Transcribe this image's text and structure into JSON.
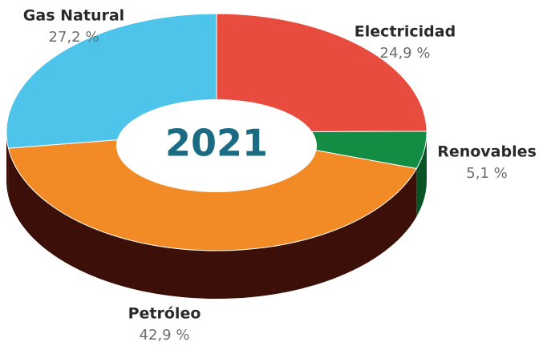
{
  "chart_data": {
    "type": "pie",
    "donut": true,
    "title": "2021",
    "categories": [
      "Electricidad",
      "Renovables",
      "Petróleo",
      "Gas Natural"
    ],
    "values": [
      24.9,
      5.1,
      42.9,
      27.2
    ],
    "value_labels": [
      "24,9 %",
      "5,1 %",
      "42,9 %",
      "27,2 %"
    ],
    "colors": [
      "#e84c3f",
      "#138c44",
      "#f28a26",
      "#4fc4eb"
    ],
    "side_colors": [
      "#8a2418",
      "#0a5326",
      "#3c0f08",
      "#3c0f08"
    ]
  }
}
